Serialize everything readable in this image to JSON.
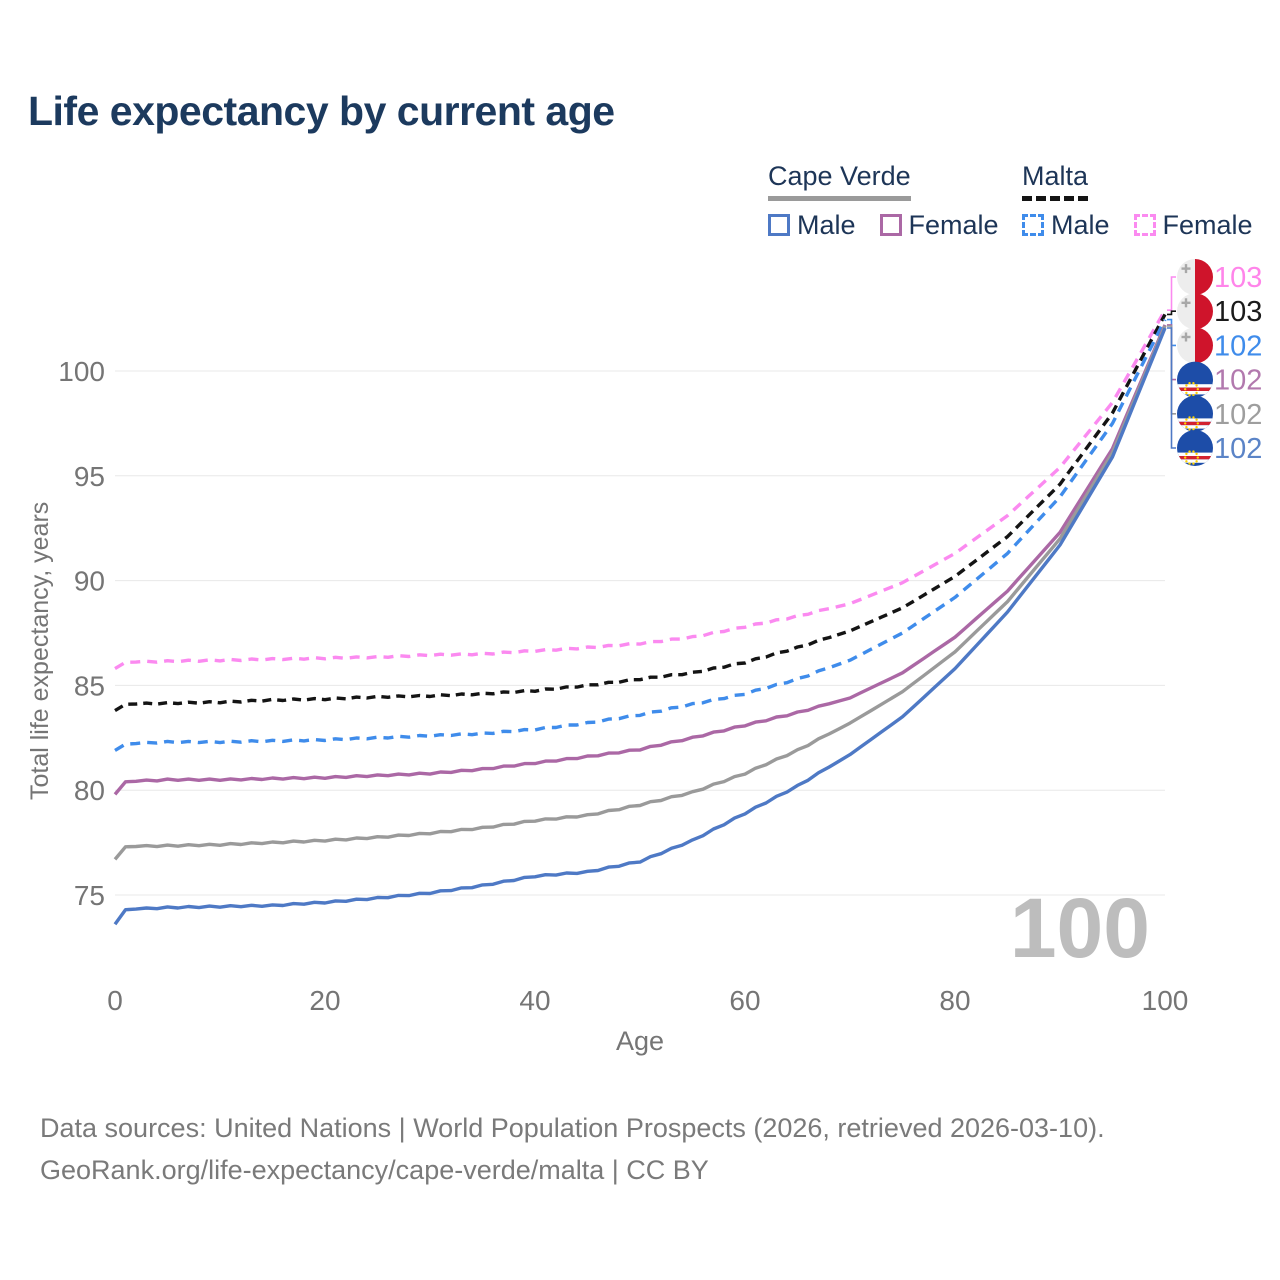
{
  "title": "Life expectancy by current age",
  "legend": {
    "groups": [
      {
        "name": "Cape Verde",
        "underline": "solid",
        "underline_color": "#9a9a9a",
        "items": [
          {
            "label": "Male",
            "color": "#4e79c5",
            "dashed": false
          },
          {
            "label": "Female",
            "color": "#ab68a5",
            "dashed": false
          }
        ]
      },
      {
        "name": "Malta",
        "underline": "dashed",
        "underline_color": "#141414",
        "items": [
          {
            "label": "Male",
            "color": "#3f8ceb",
            "dashed": true
          },
          {
            "label": "Female",
            "color": "#fb8af0",
            "dashed": true
          }
        ]
      }
    ]
  },
  "chart_data": {
    "type": "line",
    "title": "Life expectancy by current age",
    "xlabel": "Age",
    "ylabel": "Total life expectancy, years",
    "xlim": [
      0,
      100
    ],
    "ylim": [
      73,
      104
    ],
    "x_ticks": [
      0,
      20,
      40,
      60,
      80,
      100
    ],
    "y_ticks": [
      75,
      80,
      85,
      90,
      95,
      100
    ],
    "grid": "horizontal",
    "watermark": "100",
    "legend_position": "top-right",
    "series": [
      {
        "id": "malta-female",
        "name": "Malta Female",
        "color": "#fb8af0",
        "dash": "10 7",
        "flag": "malta",
        "end_label": {
          "text": "103",
          "color": "#ff85ea"
        },
        "points": [
          [
            0,
            85.8
          ],
          [
            1,
            86.1
          ],
          [
            5,
            86.15
          ],
          [
            10,
            86.2
          ],
          [
            15,
            86.25
          ],
          [
            20,
            86.3
          ],
          [
            25,
            86.35
          ],
          [
            30,
            86.45
          ],
          [
            35,
            86.5
          ],
          [
            40,
            86.65
          ],
          [
            45,
            86.8
          ],
          [
            50,
            87.0
          ],
          [
            55,
            87.3
          ],
          [
            60,
            87.8
          ],
          [
            65,
            88.3
          ],
          [
            70,
            88.9
          ],
          [
            75,
            89.9
          ],
          [
            80,
            91.3
          ],
          [
            85,
            93.1
          ],
          [
            90,
            95.4
          ],
          [
            95,
            98.5
          ],
          [
            100,
            102.9
          ]
        ]
      },
      {
        "id": "malta-total",
        "name": "Malta",
        "color": "#141414",
        "dash": "9 6",
        "flag": "malta",
        "end_label": {
          "text": "103",
          "color": "#1a1a1a"
        },
        "points": [
          [
            0,
            83.8
          ],
          [
            1,
            84.1
          ],
          [
            5,
            84.15
          ],
          [
            10,
            84.2
          ],
          [
            15,
            84.3
          ],
          [
            20,
            84.35
          ],
          [
            25,
            84.45
          ],
          [
            30,
            84.5
          ],
          [
            35,
            84.6
          ],
          [
            40,
            84.75
          ],
          [
            45,
            85.0
          ],
          [
            50,
            85.3
          ],
          [
            55,
            85.6
          ],
          [
            60,
            86.1
          ],
          [
            65,
            86.8
          ],
          [
            70,
            87.6
          ],
          [
            75,
            88.7
          ],
          [
            80,
            90.2
          ],
          [
            85,
            92.1
          ],
          [
            90,
            94.6
          ],
          [
            95,
            98.0
          ],
          [
            100,
            102.7
          ]
        ]
      },
      {
        "id": "malta-male",
        "name": "Malta Male",
        "color": "#3f8ceb",
        "dash": "10 7",
        "flag": "malta",
        "end_label": {
          "text": "102",
          "color": "#3f8ceb"
        },
        "points": [
          [
            0,
            81.9
          ],
          [
            1,
            82.2
          ],
          [
            5,
            82.3
          ],
          [
            10,
            82.3
          ],
          [
            15,
            82.35
          ],
          [
            20,
            82.4
          ],
          [
            25,
            82.5
          ],
          [
            30,
            82.6
          ],
          [
            35,
            82.7
          ],
          [
            40,
            82.9
          ],
          [
            45,
            83.2
          ],
          [
            50,
            83.6
          ],
          [
            55,
            84.1
          ],
          [
            60,
            84.6
          ],
          [
            65,
            85.3
          ],
          [
            70,
            86.2
          ],
          [
            75,
            87.5
          ],
          [
            80,
            89.2
          ],
          [
            85,
            91.3
          ],
          [
            90,
            94.0
          ],
          [
            95,
            97.5
          ],
          [
            100,
            102.45
          ]
        ]
      },
      {
        "id": "cape-verde-female",
        "name": "Cape Verde Female",
        "color": "#ab68a5",
        "dash": null,
        "flag": "cape-verde",
        "end_label": {
          "text": "102",
          "color": "#b279ae"
        },
        "points": [
          [
            0,
            79.8
          ],
          [
            1,
            80.4
          ],
          [
            5,
            80.5
          ],
          [
            10,
            80.5
          ],
          [
            15,
            80.55
          ],
          [
            20,
            80.6
          ],
          [
            25,
            80.7
          ],
          [
            30,
            80.8
          ],
          [
            35,
            81.0
          ],
          [
            40,
            81.3
          ],
          [
            45,
            81.6
          ],
          [
            50,
            81.95
          ],
          [
            55,
            82.5
          ],
          [
            60,
            83.1
          ],
          [
            65,
            83.7
          ],
          [
            70,
            84.4
          ],
          [
            75,
            85.6
          ],
          [
            80,
            87.3
          ],
          [
            85,
            89.5
          ],
          [
            90,
            92.3
          ],
          [
            95,
            96.3
          ],
          [
            100,
            102.2
          ]
        ]
      },
      {
        "id": "cape-verde-total",
        "name": "Cape Verde",
        "color": "#9a9a9a",
        "dash": null,
        "flag": "cape-verde",
        "end_label": {
          "text": "102",
          "color": "#9e9e9e"
        },
        "points": [
          [
            0,
            76.7
          ],
          [
            1,
            77.3
          ],
          [
            5,
            77.35
          ],
          [
            10,
            77.4
          ],
          [
            15,
            77.5
          ],
          [
            20,
            77.6
          ],
          [
            25,
            77.75
          ],
          [
            30,
            77.95
          ],
          [
            35,
            78.2
          ],
          [
            40,
            78.55
          ],
          [
            45,
            78.8
          ],
          [
            50,
            79.3
          ],
          [
            55,
            79.9
          ],
          [
            60,
            80.8
          ],
          [
            65,
            81.9
          ],
          [
            70,
            83.2
          ],
          [
            75,
            84.7
          ],
          [
            80,
            86.6
          ],
          [
            85,
            89.0
          ],
          [
            90,
            92.0
          ],
          [
            95,
            96.1
          ],
          [
            100,
            102.15
          ]
        ]
      },
      {
        "id": "cape-verde-male",
        "name": "Cape Verde Male",
        "color": "#4e79c5",
        "dash": null,
        "flag": "cape-verde",
        "end_label": {
          "text": "102",
          "color": "#5b84c7"
        },
        "points": [
          [
            0,
            73.6
          ],
          [
            1,
            74.3
          ],
          [
            5,
            74.4
          ],
          [
            10,
            74.45
          ],
          [
            15,
            74.5
          ],
          [
            20,
            74.65
          ],
          [
            25,
            74.85
          ],
          [
            30,
            75.1
          ],
          [
            35,
            75.45
          ],
          [
            40,
            75.9
          ],
          [
            45,
            76.1
          ],
          [
            50,
            76.6
          ],
          [
            55,
            77.6
          ],
          [
            60,
            78.9
          ],
          [
            65,
            80.2
          ],
          [
            70,
            81.7
          ],
          [
            75,
            83.5
          ],
          [
            80,
            85.8
          ],
          [
            85,
            88.5
          ],
          [
            90,
            91.7
          ],
          [
            95,
            95.9
          ],
          [
            100,
            102.05
          ]
        ]
      }
    ],
    "flag_colors": {
      "malta_white": "#ededed",
      "malta_red": "#cf142b",
      "malta_cross": "#a8a8a8",
      "cv_blue": "#1d4da8",
      "cv_white": "#ffffff",
      "cv_red": "#d22230",
      "cv_star": "#ffd200"
    },
    "axis_color": "#757575",
    "grid_color": "#e8e8e8",
    "watermark_color": "#bdbdbd"
  },
  "footer": {
    "line1": "Data sources: United Nations | World Population Prospects (2026, retrieved 2026-03-10).",
    "line2": "GeoRank.org/life-expectancy/cape-verde/malta | CC BY"
  }
}
